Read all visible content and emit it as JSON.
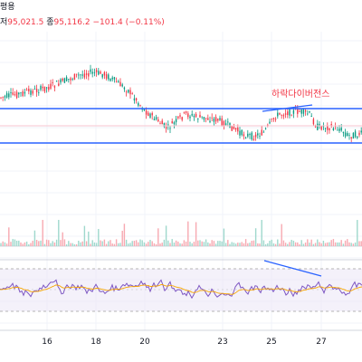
{
  "header": {
    "line1": "평용",
    "low_label": "저",
    "low_value": "95,021.5",
    "close_label": "종",
    "close_value": "95,116.2",
    "change": "−101.4 (−0.11%)"
  },
  "colors": {
    "up": "#089981",
    "down": "#f23645",
    "channel": "#2962ff",
    "rsi": "#7e57c2",
    "rsi_ma": "#f7a600",
    "divergence_label": "#f23645"
  },
  "annotation": {
    "text": "하락다이버전스"
  },
  "chart_data": [
    {
      "type": "candlestick",
      "x_ticks": [
        "16",
        "18",
        "20",
        "23",
        "25",
        "27"
      ],
      "channel": {
        "style": "horizontal parallel lines"
      },
      "annotations": [
        "하락다이버전스"
      ],
      "grid": true
    },
    {
      "type": "bar",
      "title": "",
      "grid": true
    },
    {
      "type": "line",
      "series": [
        {
          "name": ""
        },
        {
          "name": ""
        }
      ],
      "bands": "dashed upper and lower lines with shaded background",
      "grid": true
    }
  ]
}
